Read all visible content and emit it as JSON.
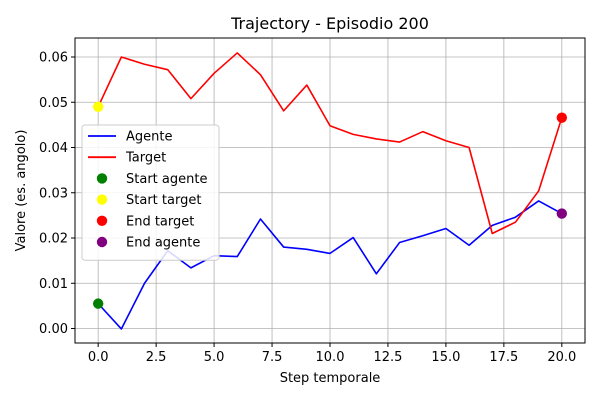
{
  "chart_data": {
    "type": "line",
    "title": "Trajectory - Episodio 200",
    "xlabel": "Step temporale",
    "ylabel": "Valore (es. angolo)",
    "xlim": [
      -1,
      21
    ],
    "ylim": [
      -0.0032,
      0.0642
    ],
    "xticks": [
      0,
      2.5,
      5,
      7.5,
      10,
      12.5,
      15,
      17.5,
      20
    ],
    "xtick_labels": [
      "0.0",
      "2.5",
      "5.0",
      "7.5",
      "10.0",
      "12.5",
      "15.0",
      "17.5",
      "20.0"
    ],
    "yticks": [
      0,
      0.01,
      0.02,
      0.03,
      0.04,
      0.05,
      0.06
    ],
    "ytick_labels": [
      "0.00",
      "0.01",
      "0.02",
      "0.03",
      "0.04",
      "0.05",
      "0.06"
    ],
    "grid": true,
    "legend_position": "center-left",
    "x": [
      0,
      1,
      2,
      3,
      4,
      5,
      6,
      7,
      8,
      9,
      10,
      11,
      12,
      13,
      14,
      15,
      16,
      17,
      18,
      19,
      20
    ],
    "series": [
      {
        "name": "Agente",
        "color": "#0000ff",
        "values": [
          0.0055,
          -0.0001,
          0.01,
          0.0172,
          0.0134,
          0.0161,
          0.0159,
          0.0242,
          0.018,
          0.0175,
          0.0166,
          0.0201,
          0.0121,
          0.019,
          0.0205,
          0.0221,
          0.0184,
          0.0228,
          0.0246,
          0.0282,
          0.0254
        ]
      },
      {
        "name": "Target",
        "color": "#ff0000",
        "values": [
          0.049,
          0.06,
          0.0584,
          0.0572,
          0.0508,
          0.0564,
          0.0609,
          0.0561,
          0.0481,
          0.0538,
          0.0448,
          0.0429,
          0.0419,
          0.0412,
          0.0435,
          0.0415,
          0.04,
          0.021,
          0.0235,
          0.0304,
          0.0466
        ]
      }
    ],
    "points": [
      {
        "name": "Start agente",
        "x": 0,
        "y": 0.0055,
        "color": "#008000"
      },
      {
        "name": "Start target",
        "x": 0,
        "y": 0.049,
        "color": "#ffff00"
      },
      {
        "name": "End target",
        "x": 20,
        "y": 0.0466,
        "color": "#ff0000"
      },
      {
        "name": "End agente",
        "x": 20,
        "y": 0.0254,
        "color": "#800080"
      }
    ],
    "legend": [
      {
        "label": "Agente",
        "kind": "line",
        "color": "#0000ff"
      },
      {
        "label": "Target",
        "kind": "line",
        "color": "#ff0000"
      },
      {
        "label": "Start agente",
        "kind": "marker",
        "color": "#008000"
      },
      {
        "label": "Start target",
        "kind": "marker",
        "color": "#ffff00"
      },
      {
        "label": "End target",
        "kind": "marker",
        "color": "#ff0000"
      },
      {
        "label": "End agente",
        "kind": "marker",
        "color": "#800080"
      }
    ]
  }
}
